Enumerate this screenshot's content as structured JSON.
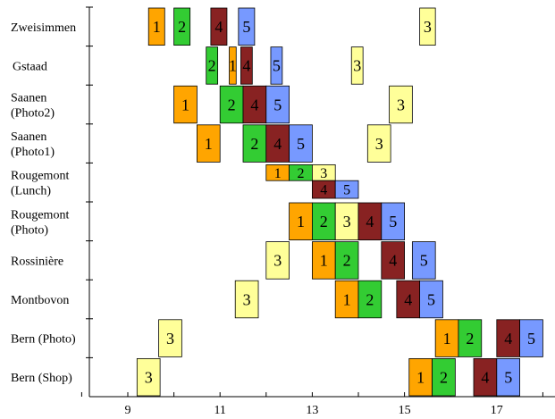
{
  "chart_data": {
    "type": "gantt",
    "title": "",
    "xlabel": "",
    "ylabel": "",
    "xlim": [
      7.7,
      18.4
    ],
    "x_ticks": [
      9,
      11,
      13,
      15,
      17
    ],
    "x_minor_ticks": [
      8,
      9,
      10,
      11,
      12,
      13,
      14,
      15,
      16,
      17,
      18
    ],
    "categories": [
      "Zweisimmen",
      "Gstaad",
      "Saanen (Photo2)",
      "Saanen (Photo1)",
      "Rougemont (Lunch)",
      "Rougemont (Photo)",
      "Rossinière",
      "Montbovon",
      "Bern (Photo)",
      "Bern (Shop)"
    ],
    "category_labels": [
      [
        "Zweisimmen"
      ],
      [
        "Gstaad"
      ],
      [
        "Saanen",
        "(Photo2)"
      ],
      [
        "Saanen",
        "(Photo1)"
      ],
      [
        "Rougemont",
        "(Lunch)"
      ],
      [
        "Rougemont",
        "(Photo)"
      ],
      [
        "Rossinière"
      ],
      [
        "Montbovon"
      ],
      [
        "Bern (Photo)"
      ],
      [
        "Bern (Shop)"
      ]
    ],
    "group_colors": {
      "1": "#ffa500",
      "2": "#33cc33",
      "3": "#ffff99",
      "4": "#882222",
      "5": "#7799ff"
    },
    "series": [
      {
        "label": "1",
        "bars": [
          {
            "row": 0,
            "x0": 9.45,
            "x1": 9.8,
            "h": "tall"
          },
          {
            "row": 1,
            "x0": 11.2,
            "x1": 11.35,
            "h": "tall"
          },
          {
            "row": 2,
            "x0": 10.0,
            "x1": 10.5,
            "h": "tall"
          },
          {
            "row": 3,
            "x0": 10.5,
            "x1": 11.0,
            "h": "tall"
          },
          {
            "row": 4,
            "x0": 12.0,
            "x1": 12.5,
            "h": "top"
          },
          {
            "row": 5,
            "x0": 12.5,
            "x1": 13.0,
            "h": "tall"
          },
          {
            "row": 6,
            "x0": 13.0,
            "x1": 13.5,
            "h": "tall"
          },
          {
            "row": 7,
            "x0": 13.5,
            "x1": 14.0,
            "h": "tall"
          },
          {
            "row": 8,
            "x0": 15.67,
            "x1": 16.17,
            "h": "tall"
          },
          {
            "row": 9,
            "x0": 15.1,
            "x1": 15.6,
            "h": "tall"
          }
        ]
      },
      {
        "label": "2",
        "bars": [
          {
            "row": 0,
            "x0": 10.0,
            "x1": 10.35,
            "h": "tall"
          },
          {
            "row": 1,
            "x0": 10.7,
            "x1": 10.95,
            "h": "tall"
          },
          {
            "row": 2,
            "x0": 11.0,
            "x1": 11.5,
            "h": "tall"
          },
          {
            "row": 3,
            "x0": 11.5,
            "x1": 12.0,
            "h": "tall"
          },
          {
            "row": 4,
            "x0": 12.5,
            "x1": 13.0,
            "h": "top"
          },
          {
            "row": 5,
            "x0": 13.0,
            "x1": 13.5,
            "h": "tall"
          },
          {
            "row": 6,
            "x0": 13.5,
            "x1": 14.0,
            "h": "tall"
          },
          {
            "row": 7,
            "x0": 14.0,
            "x1": 14.5,
            "h": "tall"
          },
          {
            "row": 8,
            "x0": 16.17,
            "x1": 16.67,
            "h": "tall"
          },
          {
            "row": 9,
            "x0": 15.6,
            "x1": 16.1,
            "h": "tall"
          }
        ]
      },
      {
        "label": "3",
        "bars": [
          {
            "row": 0,
            "x0": 15.33,
            "x1": 15.67,
            "h": "tall"
          },
          {
            "row": 1,
            "x0": 13.85,
            "x1": 14.1,
            "h": "tall"
          },
          {
            "row": 2,
            "x0": 14.67,
            "x1": 15.17,
            "h": "tall"
          },
          {
            "row": 3,
            "x0": 14.2,
            "x1": 14.7,
            "h": "tall"
          },
          {
            "row": 4,
            "x0": 13.0,
            "x1": 13.5,
            "h": "top"
          },
          {
            "row": 5,
            "x0": 13.5,
            "x1": 14.0,
            "h": "tall"
          },
          {
            "row": 6,
            "x0": 12.0,
            "x1": 12.5,
            "h": "tall"
          },
          {
            "row": 7,
            "x0": 11.33,
            "x1": 11.83,
            "h": "tall"
          },
          {
            "row": 8,
            "x0": 9.67,
            "x1": 10.17,
            "h": "tall"
          },
          {
            "row": 9,
            "x0": 9.2,
            "x1": 9.7,
            "h": "tall"
          }
        ]
      },
      {
        "label": "4",
        "bars": [
          {
            "row": 0,
            "x0": 10.8,
            "x1": 11.15,
            "h": "tall"
          },
          {
            "row": 1,
            "x0": 11.45,
            "x1": 11.7,
            "h": "tall"
          },
          {
            "row": 2,
            "x0": 11.5,
            "x1": 12.0,
            "h": "tall"
          },
          {
            "row": 3,
            "x0": 12.0,
            "x1": 12.5,
            "h": "tall"
          },
          {
            "row": 4,
            "x0": 13.0,
            "x1": 13.5,
            "h": "bottom"
          },
          {
            "row": 5,
            "x0": 14.0,
            "x1": 14.5,
            "h": "tall"
          },
          {
            "row": 6,
            "x0": 14.5,
            "x1": 15.0,
            "h": "tall"
          },
          {
            "row": 7,
            "x0": 14.83,
            "x1": 15.33,
            "h": "tall"
          },
          {
            "row": 8,
            "x0": 17.0,
            "x1": 17.5,
            "h": "tall"
          },
          {
            "row": 9,
            "x0": 16.5,
            "x1": 17.0,
            "h": "tall"
          }
        ]
      },
      {
        "label": "5",
        "bars": [
          {
            "row": 0,
            "x0": 11.4,
            "x1": 11.75,
            "h": "tall"
          },
          {
            "row": 1,
            "x0": 12.1,
            "x1": 12.35,
            "h": "tall"
          },
          {
            "row": 2,
            "x0": 12.0,
            "x1": 12.5,
            "h": "tall"
          },
          {
            "row": 3,
            "x0": 12.5,
            "x1": 13.0,
            "h": "tall"
          },
          {
            "row": 4,
            "x0": 13.5,
            "x1": 14.0,
            "h": "bottom"
          },
          {
            "row": 5,
            "x0": 14.5,
            "x1": 15.0,
            "h": "tall"
          },
          {
            "row": 6,
            "x0": 15.17,
            "x1": 15.67,
            "h": "tall"
          },
          {
            "row": 7,
            "x0": 15.33,
            "x1": 15.83,
            "h": "tall"
          },
          {
            "row": 8,
            "x0": 17.5,
            "x1": 18.0,
            "h": "tall"
          },
          {
            "row": 9,
            "x0": 17.0,
            "x1": 17.5,
            "h": "tall"
          }
        ]
      }
    ]
  }
}
